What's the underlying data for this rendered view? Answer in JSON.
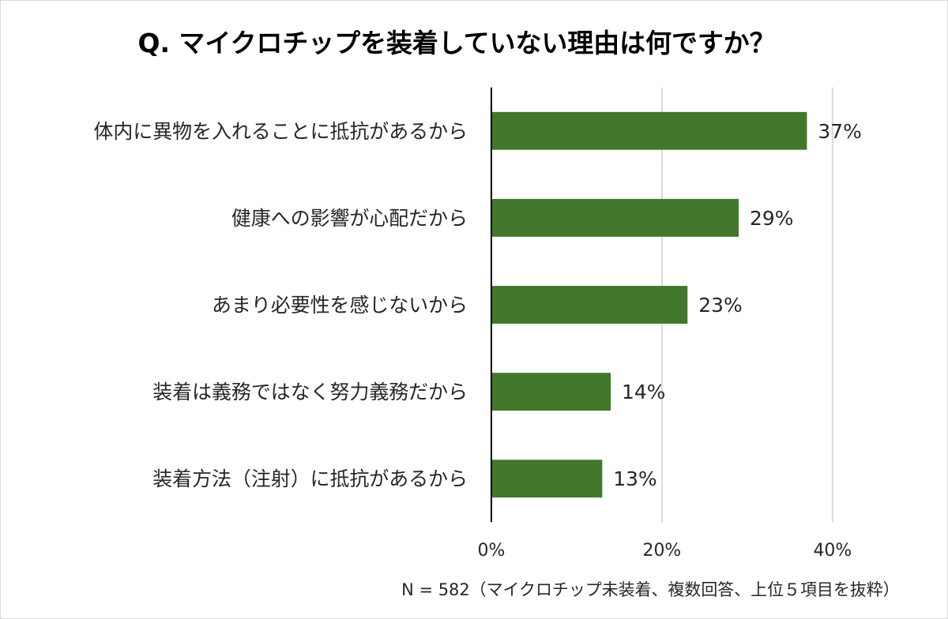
{
  "chart_data": {
    "type": "bar",
    "orientation": "horizontal",
    "title": "Q. マイクロチップを装着していない理由は何ですか？",
    "categories": [
      "体内に異物を入れることに抵抗があるから",
      "健康への影響が心配だから",
      "あまり必要性を感じないから",
      "装着は義務ではなく努力義務だから",
      "装着方法（注射）に抵抗があるから"
    ],
    "values": [
      37,
      29,
      23,
      14,
      13
    ],
    "value_labels": [
      "37%",
      "29%",
      "23%",
      "14%",
      "13%"
    ],
    "xlim": [
      0,
      40
    ],
    "x_ticks": [
      0,
      20,
      40
    ],
    "x_tick_labels": [
      "0%",
      "20%",
      "40%"
    ],
    "grid": "vertical",
    "bar_color": "#41782b",
    "footnote": "N = 582（マイクロチップ未装着、複数回答、上位５項目を抜粋）"
  }
}
